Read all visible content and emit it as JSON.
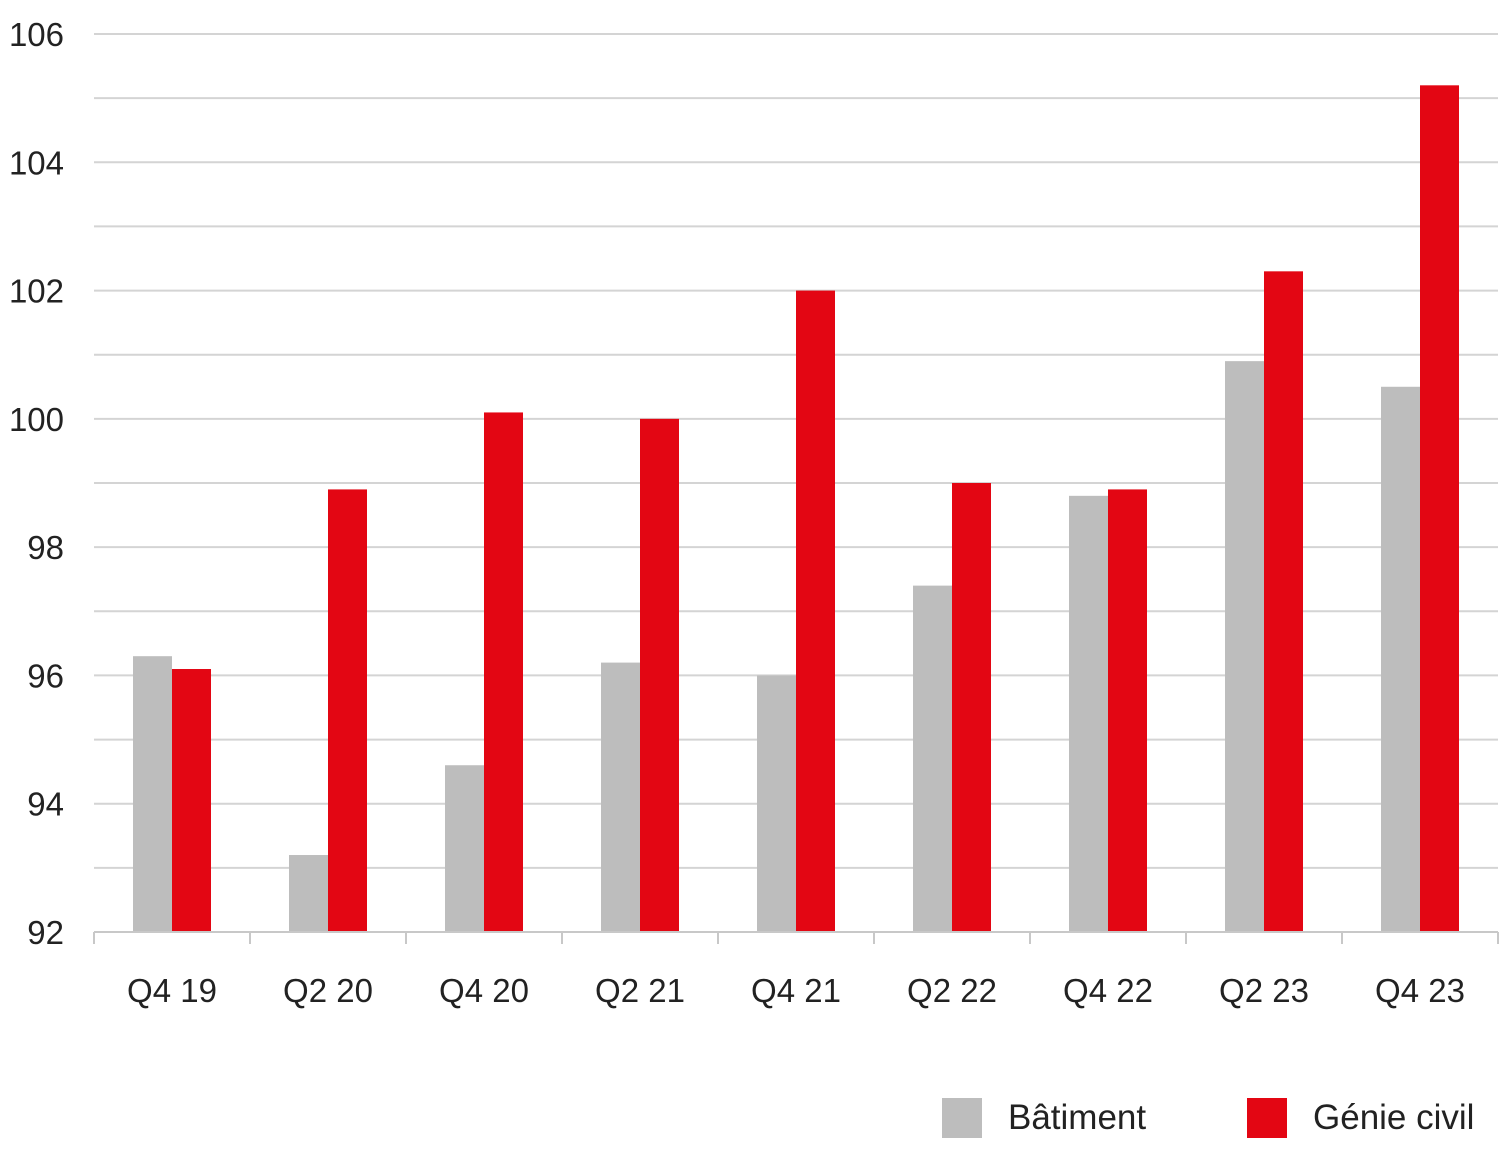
{
  "chart_data": {
    "type": "bar",
    "categories": [
      "Q4 19",
      "Q2 20",
      "Q4 20",
      "Q2 21",
      "Q4 21",
      "Q2 22",
      "Q4 22",
      "Q2 23",
      "Q4 23"
    ],
    "series": [
      {
        "name": "Bâtiment",
        "color": "#bdbdbd",
        "values": [
          96.3,
          93.2,
          94.6,
          96.2,
          96.0,
          97.4,
          98.8,
          100.9,
          100.5
        ]
      },
      {
        "name": "Génie civil",
        "color": "#e30613",
        "values": [
          96.1,
          98.9,
          100.1,
          100.0,
          102.0,
          99.0,
          98.9,
          102.3,
          105.2
        ]
      }
    ],
    "ylim": [
      92,
      106
    ],
    "yticks": [
      "92",
      "94",
      "96",
      "98",
      "100",
      "102",
      "104",
      "106"
    ],
    "grid_step": 1,
    "grid": true,
    "legend_position": "bottom-right",
    "title": "",
    "xlabel": "",
    "ylabel": ""
  }
}
